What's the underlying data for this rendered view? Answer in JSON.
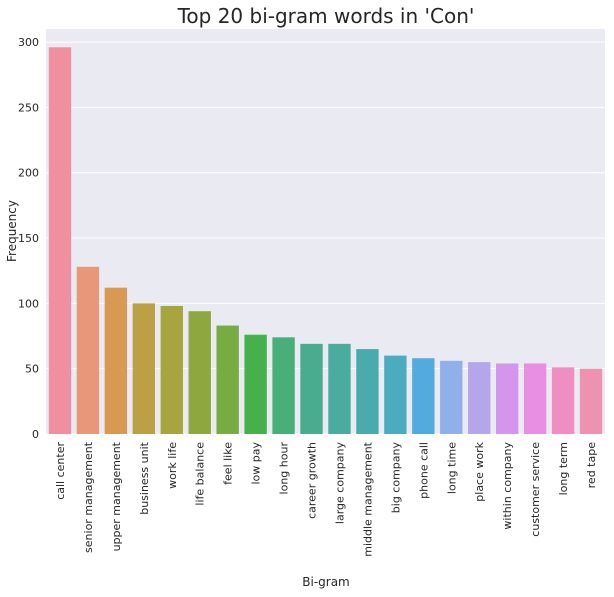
{
  "chart_data": {
    "type": "bar",
    "title": "Top 20 bi-gram words in 'Con'",
    "xlabel": "Bi-gram",
    "ylabel": "Frequency",
    "ylim": [
      0,
      310
    ],
    "yticks": [
      0,
      50,
      100,
      150,
      200,
      250,
      300
    ],
    "grid": true,
    "categories": [
      "call center",
      "senior management",
      "upper management",
      "business unit",
      "work life",
      "life balance",
      "feel like",
      "low pay",
      "long hour",
      "career growth",
      "large company",
      "middle management",
      "big company",
      "phone call",
      "long time",
      "place work",
      "within company",
      "customer service",
      "long term",
      "red tape"
    ],
    "values": [
      296,
      128,
      112,
      100,
      98,
      94,
      83,
      76,
      74,
      69,
      69,
      65,
      60,
      58,
      56,
      55,
      54,
      54,
      51,
      50
    ],
    "colors": [
      "#ef8fa0",
      "#e8977a",
      "#d89a52",
      "#bca045",
      "#a6a53f",
      "#8ea83f",
      "#76ac41",
      "#46b14b",
      "#48ae7a",
      "#4aac8e",
      "#4aab9e",
      "#4aabac",
      "#4bacbf",
      "#53aadc",
      "#8fb0e8",
      "#b5a6ec",
      "#d496ec",
      "#e88ee3",
      "#ef8ec2",
      "#ee92b2"
    ]
  }
}
